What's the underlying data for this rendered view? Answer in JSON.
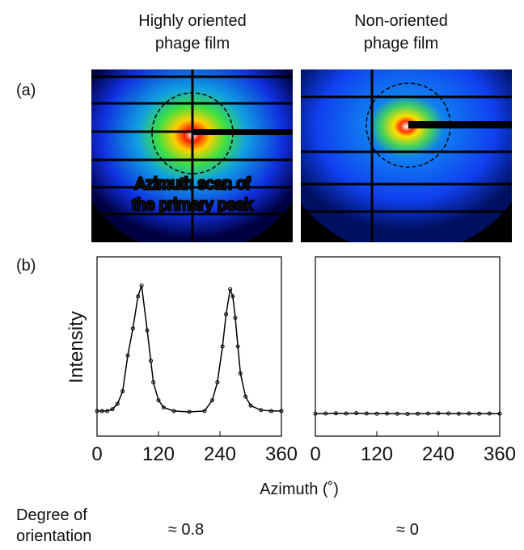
{
  "column_titles": [
    [
      "Highly oriented",
      "phage film"
    ],
    [
      "Non-oriented",
      "phage film"
    ]
  ],
  "panel_labels": [
    "(a)",
    "(b)"
  ],
  "annotation": [
    "Azimuth scan of",
    "the primary peak"
  ],
  "xlabel": "Azimuth (˚)",
  "ylabel": "Intensity",
  "degree_label": [
    "Degree of",
    "orientation"
  ],
  "degree_values": [
    "≈ 0.8",
    "≈ 0"
  ],
  "chart_data": [
    {
      "type": "scatter",
      "color": "#000000",
      "x": [
        0,
        10,
        20,
        30,
        40,
        50,
        60,
        70,
        80,
        87,
        98,
        105,
        110,
        120,
        130,
        150,
        180,
        210,
        225,
        235,
        245,
        252,
        260,
        265,
        270,
        275,
        280,
        290,
        300,
        320,
        340,
        360
      ],
      "values": [
        0.14,
        0.14,
        0.14,
        0.15,
        0.18,
        0.25,
        0.45,
        0.6,
        0.78,
        0.84,
        0.59,
        0.42,
        0.3,
        0.2,
        0.16,
        0.14,
        0.135,
        0.14,
        0.2,
        0.3,
        0.5,
        0.68,
        0.82,
        0.78,
        0.66,
        0.5,
        0.35,
        0.22,
        0.17,
        0.145,
        0.14,
        0.14
      ],
      "xlim": [
        0,
        360
      ],
      "xticks": [
        0,
        120,
        240,
        360
      ],
      "ylim": [
        0,
        1
      ]
    },
    {
      "type": "scatter",
      "color": "#000000",
      "x": [
        0,
        20,
        40,
        60,
        80,
        100,
        120,
        140,
        160,
        180,
        200,
        220,
        240,
        260,
        280,
        300,
        320,
        340,
        360
      ],
      "values": [
        0.125,
        0.126,
        0.127,
        0.126,
        0.128,
        0.126,
        0.125,
        0.126,
        0.125,
        0.124,
        0.125,
        0.126,
        0.127,
        0.126,
        0.125,
        0.126,
        0.125,
        0.126,
        0.125
      ],
      "xlim": [
        0,
        360
      ],
      "xticks": [
        0,
        120,
        240,
        360
      ],
      "ylim": [
        0,
        1
      ]
    }
  ]
}
